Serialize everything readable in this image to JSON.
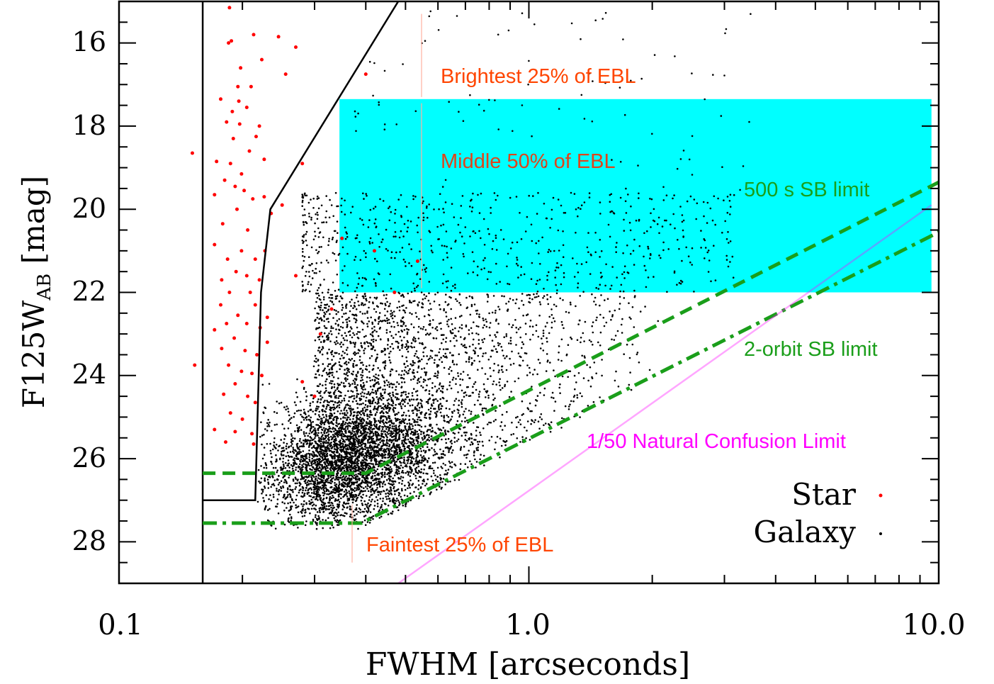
{
  "chart_data": {
    "type": "scatter",
    "xlabel": "FWHM [arcseconds]",
    "ylabel": "F125W",
    "ylabel_subscript": "AB",
    "ylabel_unit": " [mag]",
    "x_scale": "log",
    "xlim": [
      0.1,
      10.0
    ],
    "ylim": [
      29,
      15
    ],
    "x_tick_labels": [
      "0.1",
      "1.0",
      "10.0"
    ],
    "y_tick_labels": [
      "16",
      "18",
      "20",
      "22",
      "24",
      "26",
      "28"
    ],
    "y_ticks": [
      16,
      18,
      20,
      22,
      24,
      26,
      28
    ],
    "grid": false,
    "legend_position": "bottom-right",
    "legend": [
      {
        "label": "Star",
        "color": "#ff0000"
      },
      {
        "label": "Galaxy",
        "color": "#000000"
      }
    ],
    "colors": {
      "star": "#ff0000",
      "galaxy": "#000000",
      "band": "#00ffff",
      "sb_limit": "#1a9e1a",
      "confusion": "#ff00ff",
      "ebl_text": "#ff4500"
    },
    "shaded_band": {
      "ymin": 17.35,
      "ymax": 22.0,
      "xmin": 0.345,
      "xmax": 9.6
    },
    "annotations": [
      {
        "text": "Brightest 25% of EBL",
        "x": 0.5,
        "y": 16.8,
        "color": "#ff4500"
      },
      {
        "text": "Middle 50% of EBL",
        "x": 0.5,
        "y": 18.8,
        "color": "#ff4500"
      },
      {
        "text": "Faintest  25% of EBL",
        "x": 0.29,
        "y": 28.1,
        "color": "#ff4500"
      },
      {
        "text": "500 s SB limit",
        "x": 3.5,
        "y": 19.6,
        "color": "#1a9e1a"
      },
      {
        "text": "2-orbit SB limit",
        "x": 3.5,
        "y": 23.4,
        "color": "#1a9e1a"
      },
      {
        "text": "1/50 Natural Confusion Limit",
        "x": 1.7,
        "y": 25.9,
        "color": "#ff00ff"
      }
    ],
    "lines": [
      {
        "name": "stellar locus boundary",
        "style": "solid",
        "color": "#000000",
        "x": [
          0.48,
          0.234,
          0.222,
          0.215,
          0.16
        ],
        "y": [
          15.0,
          20.0,
          22.0,
          27.0,
          27.0
        ]
      },
      {
        "name": "PSF limit",
        "style": "solid",
        "color": "#000000",
        "x": [
          0.16,
          0.16
        ],
        "y": [
          15.0,
          29.0
        ]
      },
      {
        "name": "500 s SB limit",
        "style": "dashed",
        "color": "#1a9e1a",
        "x": [
          0.16,
          0.4,
          10.0
        ],
        "y": [
          26.35,
          26.35,
          19.35
        ]
      },
      {
        "name": "2-orbit SB limit",
        "style": "dashdot",
        "color": "#1a9e1a",
        "x": [
          0.16,
          0.39,
          10.0
        ],
        "y": [
          27.55,
          27.55,
          20.55
        ]
      },
      {
        "name": "1/50 Natural Confusion Limit",
        "style": "solid",
        "color": "#ff00ff",
        "x": [
          0.48,
          9.6
        ],
        "y": [
          29.0,
          19.9
        ]
      }
    ],
    "stars": [
      [
        0.186,
        15.15
      ],
      [
        0.185,
        16.0
      ],
      [
        0.188,
        15.95
      ],
      [
        0.213,
        15.8
      ],
      [
        0.223,
        16.4
      ],
      [
        0.245,
        15.85
      ],
      [
        0.198,
        16.6
      ],
      [
        0.255,
        16.75
      ],
      [
        0.195,
        17.05
      ],
      [
        0.21,
        17.05
      ],
      [
        0.196,
        17.4
      ],
      [
        0.177,
        17.35
      ],
      [
        0.189,
        17.65
      ],
      [
        0.205,
        17.55
      ],
      [
        0.183,
        17.9
      ],
      [
        0.197,
        17.95
      ],
      [
        0.22,
        18.0
      ],
      [
        0.19,
        18.3
      ],
      [
        0.216,
        18.25
      ],
      [
        0.208,
        18.6
      ],
      [
        0.173,
        18.85
      ],
      [
        0.187,
        18.9
      ],
      [
        0.199,
        19.15
      ],
      [
        0.226,
        18.8
      ],
      [
        0.181,
        19.3
      ],
      [
        0.192,
        19.45
      ],
      [
        0.202,
        19.55
      ],
      [
        0.171,
        19.65
      ],
      [
        0.212,
        19.75
      ],
      [
        0.226,
        19.7
      ],
      [
        0.235,
        20.1
      ],
      [
        0.194,
        20.0
      ],
      [
        0.179,
        20.35
      ],
      [
        0.206,
        20.5
      ],
      [
        0.171,
        20.85
      ],
      [
        0.199,
        21.0
      ],
      [
        0.227,
        21.0
      ],
      [
        0.184,
        21.2
      ],
      [
        0.215,
        21.2
      ],
      [
        0.193,
        21.5
      ],
      [
        0.178,
        21.7
      ],
      [
        0.205,
        21.6
      ],
      [
        0.22,
        21.7
      ],
      [
        0.186,
        22.0
      ],
      [
        0.209,
        22.0
      ],
      [
        0.177,
        22.3
      ],
      [
        0.215,
        22.3
      ],
      [
        0.195,
        22.55
      ],
      [
        0.171,
        22.9
      ],
      [
        0.183,
        22.75
      ],
      [
        0.205,
        22.75
      ],
      [
        0.221,
        22.85
      ],
      [
        0.191,
        23.1
      ],
      [
        0.23,
        23.2
      ],
      [
        0.178,
        23.35
      ],
      [
        0.203,
        23.4
      ],
      [
        0.217,
        23.5
      ],
      [
        0.185,
        23.75
      ],
      [
        0.199,
        23.9
      ],
      [
        0.211,
        23.95
      ],
      [
        0.223,
        24.0
      ],
      [
        0.192,
        24.2
      ],
      [
        0.18,
        24.45
      ],
      [
        0.206,
        24.5
      ],
      [
        0.215,
        24.65
      ],
      [
        0.187,
        24.9
      ],
      [
        0.2,
        25.05
      ],
      [
        0.171,
        25.3
      ],
      [
        0.192,
        25.35
      ],
      [
        0.211,
        25.4
      ],
      [
        0.182,
        25.6
      ],
      [
        0.213,
        25.65
      ],
      [
        0.151,
        18.65
      ],
      [
        0.153,
        23.75
      ],
      [
        0.28,
        18.9
      ],
      [
        0.25,
        19.9
      ],
      [
        0.27,
        16.1
      ],
      [
        0.4,
        16.75
      ],
      [
        0.35,
        20.7
      ],
      [
        0.42,
        21.0
      ],
      [
        0.535,
        21.25
      ],
      [
        0.47,
        22.0
      ],
      [
        0.28,
        24.15
      ],
      [
        0.3,
        24.5
      ],
      [
        0.31,
        23.0
      ],
      [
        0.33,
        22.4
      ],
      [
        0.27,
        21.6
      ],
      [
        0.23,
        22.6
      ]
    ]
  }
}
